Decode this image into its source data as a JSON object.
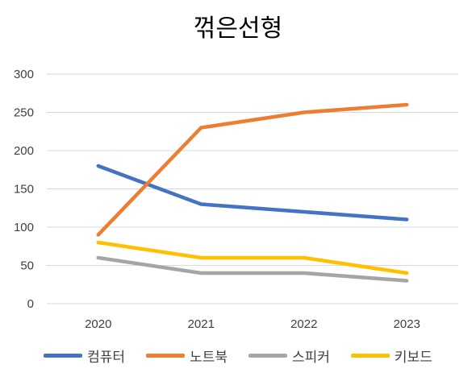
{
  "chart_data": {
    "type": "line",
    "title": "꺾은선형",
    "categories": [
      "2020",
      "2021",
      "2022",
      "2023"
    ],
    "ylim": [
      0,
      300
    ],
    "yticks": [
      0,
      50,
      100,
      150,
      200,
      250,
      300
    ],
    "grid": true,
    "legend_position": "bottom",
    "series": [
      {
        "name": "컴퓨터",
        "color": "#4472C4",
        "values": [
          180,
          130,
          120,
          110
        ]
      },
      {
        "name": "노트북",
        "color": "#ED7D31",
        "values": [
          90,
          230,
          250,
          260
        ]
      },
      {
        "name": "스피커",
        "color": "#A5A5A5",
        "values": [
          60,
          40,
          40,
          30
        ]
      },
      {
        "name": "키보드",
        "color": "#FFC000",
        "values": [
          80,
          60,
          60,
          40
        ]
      }
    ]
  }
}
